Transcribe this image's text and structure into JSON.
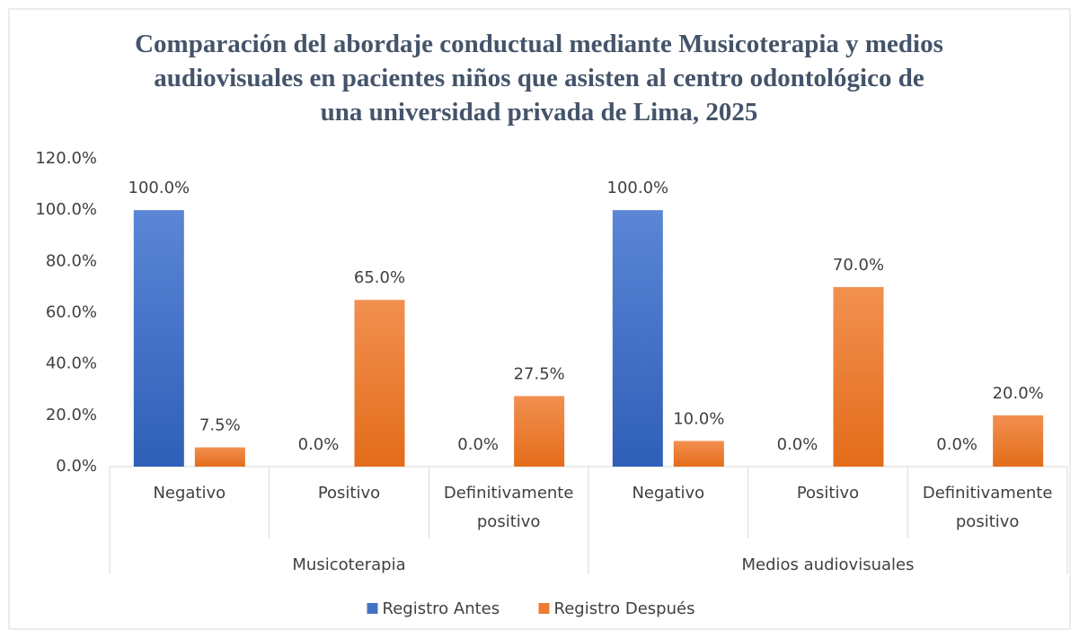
{
  "chart_data": {
    "type": "bar",
    "title": "Comparación del abordaje conductual mediante Musicoterapia y medios audiovisuales en pacientes niños que asisten al centro odontológico de una universidad privada de Lima, 2025",
    "groups": [
      {
        "name": "Musicoterapia",
        "categories": [
          "Negativo",
          "Positivo",
          "Definitivamente positivo"
        ]
      },
      {
        "name": "Medios audiovisuales",
        "categories": [
          "Negativo",
          "Positivo",
          "Definitivamente positivo"
        ]
      }
    ],
    "series": [
      {
        "name": "Registro Antes",
        "color": "#4472c4",
        "values": [
          [
            100,
            0,
            0
          ],
          [
            100,
            0,
            0
          ]
        ],
        "value_labels": [
          [
            "100.0%",
            "0.0%",
            "0.0%"
          ],
          [
            "100.0%",
            "0.0%",
            "0.0%"
          ]
        ]
      },
      {
        "name": "Registro Después",
        "color": "#ed7d31",
        "values": [
          [
            7.5,
            65,
            27.5
          ],
          [
            10,
            70,
            20
          ]
        ],
        "value_labels": [
          [
            "7.5%",
            "65.0%",
            "27.5%"
          ],
          [
            "10.0%",
            "70.0%",
            "20.0%"
          ]
        ]
      }
    ],
    "ylim": [
      0,
      120
    ],
    "yticks": [
      {
        "value": 0,
        "label": "0.0%"
      },
      {
        "value": 20,
        "label": "20.0%"
      },
      {
        "value": 40,
        "label": "40.0%"
      },
      {
        "value": 60,
        "label": "60.0%"
      },
      {
        "value": 80,
        "label": "80.0%"
      },
      {
        "value": 100,
        "label": "100.0%"
      },
      {
        "value": 120,
        "label": "120.0%"
      }
    ],
    "grid": false,
    "legend": "bottom"
  }
}
